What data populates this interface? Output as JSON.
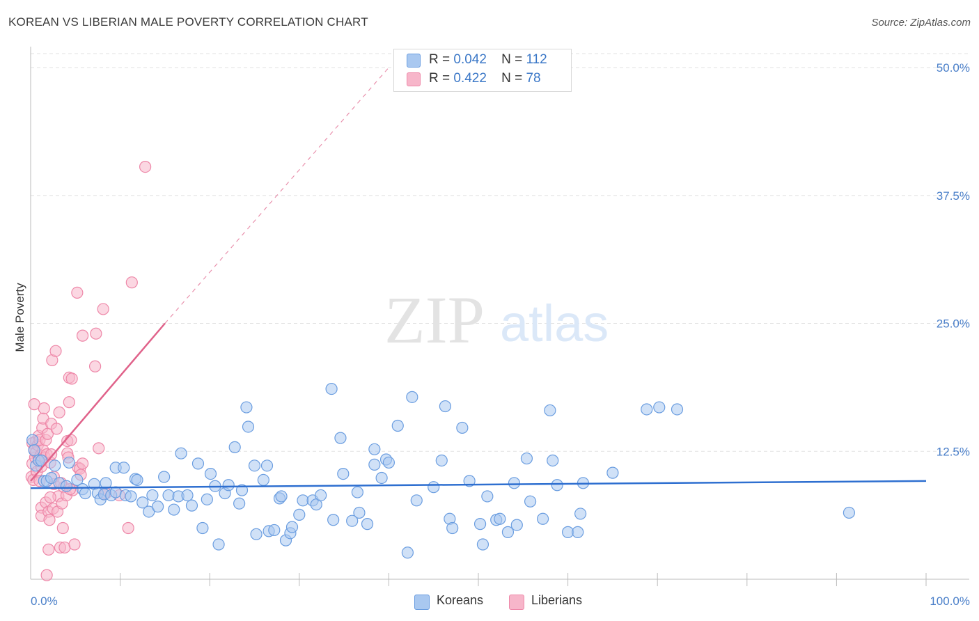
{
  "title": "KOREAN VS LIBERIAN MALE POVERTY CORRELATION CHART",
  "source": "Source: ZipAtlas.com",
  "legend": {
    "rows": [
      {
        "r_label": "R =",
        "r_value": "0.042",
        "n_label": "N =",
        "n_value": "112"
      },
      {
        "r_label": "R =",
        "r_value": "0.422",
        "n_label": "N =",
        "n_value": "78"
      }
    ],
    "series_names": [
      "Koreans",
      "Liberians"
    ]
  },
  "colors": {
    "koreans_fill": "#a9c8f0",
    "koreans_stroke": "#6a9de0",
    "koreans_line": "#2e6fd0",
    "liberians_fill": "#f7b6ca",
    "liberians_stroke": "#ee87a8",
    "liberians_line": "#e0628a",
    "tick_text": "#4a7fc9"
  },
  "watermark": {
    "part1": "ZIP",
    "part2": "atlas"
  },
  "chart_data": {
    "type": "scatter",
    "title": "KOREAN VS LIBERIAN MALE POVERTY CORRELATION CHART",
    "xlabel": "",
    "ylabel": "Male Poverty",
    "xlim": [
      0,
      100
    ],
    "ylim": [
      0,
      50
    ],
    "x_tick_labels": [
      "0.0%",
      "100.0%"
    ],
    "y_ticks": [
      {
        "value": 50,
        "label": "50.0%"
      },
      {
        "value": 37.5,
        "label": "37.5%"
      },
      {
        "value": 25,
        "label": "25.0%"
      },
      {
        "value": 12.5,
        "label": "12.5%"
      }
    ],
    "series": [
      {
        "name": "Koreans",
        "r": 0.042,
        "n": 112,
        "trend": {
          "x0": 0,
          "y0": 8.9,
          "x1": 100,
          "y1": 9.6
        },
        "points": [
          [
            0.2,
            13.6
          ],
          [
            0.4,
            12.6
          ],
          [
            0.6,
            11.1
          ],
          [
            0.9,
            11.6
          ],
          [
            1.2,
            11.6
          ],
          [
            1.5,
            9.6
          ],
          [
            1.8,
            9.6
          ],
          [
            2.3,
            9.9
          ],
          [
            2.7,
            11.1
          ],
          [
            3.2,
            9.4
          ],
          [
            4.0,
            9.1
          ],
          [
            4.3,
            11.4
          ],
          [
            5.2,
            9.7
          ],
          [
            5.8,
            8.8
          ],
          [
            6.1,
            8.4
          ],
          [
            7.1,
            9.3
          ],
          [
            7.5,
            8.4
          ],
          [
            7.8,
            7.8
          ],
          [
            8.2,
            8.3
          ],
          [
            8.4,
            9.4
          ],
          [
            9.0,
            8.2
          ],
          [
            9.5,
            8.5
          ],
          [
            9.5,
            10.9
          ],
          [
            10.4,
            10.9
          ],
          [
            10.6,
            8.2
          ],
          [
            11.2,
            8.1
          ],
          [
            11.7,
            9.8
          ],
          [
            11.9,
            9.7
          ],
          [
            12.5,
            7.5
          ],
          [
            13.2,
            6.6
          ],
          [
            13.6,
            8.2
          ],
          [
            14.2,
            7.1
          ],
          [
            14.9,
            10.0
          ],
          [
            15.4,
            8.2
          ],
          [
            16.0,
            6.8
          ],
          [
            16.5,
            8.1
          ],
          [
            16.8,
            12.3
          ],
          [
            17.5,
            8.2
          ],
          [
            18.0,
            7.2
          ],
          [
            18.7,
            11.3
          ],
          [
            19.2,
            5.0
          ],
          [
            19.7,
            7.8
          ],
          [
            20.1,
            10.3
          ],
          [
            20.6,
            9.1
          ],
          [
            21.0,
            3.4
          ],
          [
            21.7,
            8.4
          ],
          [
            22.1,
            9.2
          ],
          [
            22.8,
            12.9
          ],
          [
            23.3,
            7.4
          ],
          [
            23.6,
            8.7
          ],
          [
            24.1,
            16.8
          ],
          [
            24.3,
            14.9
          ],
          [
            25.0,
            11.1
          ],
          [
            25.2,
            4.4
          ],
          [
            26.0,
            9.7
          ],
          [
            26.4,
            11.1
          ],
          [
            26.6,
            4.7
          ],
          [
            27.2,
            4.8
          ],
          [
            27.8,
            7.9
          ],
          [
            28.0,
            8.1
          ],
          [
            28.5,
            3.8
          ],
          [
            29.0,
            4.5
          ],
          [
            29.2,
            5.1
          ],
          [
            30.0,
            6.3
          ],
          [
            30.4,
            7.7
          ],
          [
            31.5,
            7.7
          ],
          [
            31.9,
            7.3
          ],
          [
            32.4,
            8.2
          ],
          [
            33.6,
            18.6
          ],
          [
            33.8,
            5.8
          ],
          [
            34.6,
            13.8
          ],
          [
            34.9,
            10.3
          ],
          [
            35.9,
            5.7
          ],
          [
            36.5,
            8.5
          ],
          [
            36.7,
            6.5
          ],
          [
            37.6,
            5.4
          ],
          [
            38.4,
            12.7
          ],
          [
            38.4,
            11.2
          ],
          [
            39.2,
            9.9
          ],
          [
            39.7,
            11.7
          ],
          [
            40.0,
            11.4
          ],
          [
            41.0,
            15.0
          ],
          [
            42.1,
            2.6
          ],
          [
            42.6,
            17.8
          ],
          [
            43.1,
            7.7
          ],
          [
            45.0,
            9.0
          ],
          [
            45.9,
            11.6
          ],
          [
            46.3,
            16.9
          ],
          [
            46.8,
            5.9
          ],
          [
            47.1,
            5.0
          ],
          [
            48.2,
            14.8
          ],
          [
            49.0,
            9.6
          ],
          [
            50.2,
            5.4
          ],
          [
            50.5,
            3.4
          ],
          [
            51.0,
            8.1
          ],
          [
            52.0,
            5.8
          ],
          [
            52.4,
            5.9
          ],
          [
            53.3,
            4.6
          ],
          [
            54.0,
            9.4
          ],
          [
            54.3,
            5.3
          ],
          [
            55.4,
            11.8
          ],
          [
            55.8,
            7.6
          ],
          [
            57.2,
            5.9
          ],
          [
            58.0,
            16.5
          ],
          [
            58.3,
            11.6
          ],
          [
            58.8,
            9.2
          ],
          [
            60.0,
            4.6
          ],
          [
            61.1,
            4.6
          ],
          [
            61.4,
            6.4
          ],
          [
            61.7,
            9.4
          ],
          [
            65.0,
            10.4
          ],
          [
            68.8,
            16.6
          ],
          [
            70.2,
            16.8
          ],
          [
            72.2,
            16.6
          ],
          [
            91.4,
            6.5
          ]
        ]
      },
      {
        "name": "Liberians",
        "r": 0.422,
        "n": 78,
        "trend": {
          "x0": 0,
          "y0": 9.6,
          "x1": 15,
          "y1": 25.0
        },
        "trend_extension": {
          "x0": 15,
          "y0": 25.0,
          "x1": 40,
          "y1": 50.0
        },
        "points": [
          [
            0.1,
            10.0
          ],
          [
            0.2,
            11.3
          ],
          [
            0.2,
            13.3
          ],
          [
            0.3,
            9.7
          ],
          [
            0.4,
            12.7
          ],
          [
            0.4,
            17.1
          ],
          [
            0.5,
            11.9
          ],
          [
            0.6,
            13.5
          ],
          [
            0.6,
            12.4
          ],
          [
            0.7,
            10.5
          ],
          [
            0.8,
            13.1
          ],
          [
            0.9,
            11.8
          ],
          [
            0.9,
            14.0
          ],
          [
            1.0,
            13.6
          ],
          [
            1.1,
            12.1
          ],
          [
            1.2,
            11.0
          ],
          [
            1.2,
            7.0
          ],
          [
            1.2,
            6.2
          ],
          [
            1.3,
            14.8
          ],
          [
            1.4,
            15.7
          ],
          [
            1.4,
            12.6
          ],
          [
            1.5,
            16.7
          ],
          [
            1.6,
            11.9
          ],
          [
            1.7,
            7.5
          ],
          [
            1.7,
            13.6
          ],
          [
            1.8,
            12.2
          ],
          [
            1.8,
            0.4
          ],
          [
            1.9,
            14.2
          ],
          [
            2.0,
            6.6
          ],
          [
            2.0,
            2.9
          ],
          [
            2.1,
            5.8
          ],
          [
            2.2,
            11.4
          ],
          [
            2.3,
            12.2
          ],
          [
            2.3,
            15.2
          ],
          [
            2.4,
            21.4
          ],
          [
            2.5,
            6.9
          ],
          [
            2.6,
            9.3
          ],
          [
            2.6,
            10.0
          ],
          [
            2.8,
            22.3
          ],
          [
            2.9,
            14.7
          ],
          [
            3.0,
            6.6
          ],
          [
            3.1,
            8.1
          ],
          [
            3.2,
            16.3
          ],
          [
            3.3,
            3.1
          ],
          [
            3.5,
            7.4
          ],
          [
            3.6,
            5.0
          ],
          [
            3.7,
            9.0
          ],
          [
            3.8,
            3.1
          ],
          [
            4.0,
            8.2
          ],
          [
            4.1,
            12.3
          ],
          [
            4.1,
            13.5
          ],
          [
            4.2,
            11.9
          ],
          [
            4.3,
            17.3
          ],
          [
            4.3,
            19.7
          ],
          [
            4.5,
            13.6
          ],
          [
            4.6,
            19.6
          ],
          [
            4.7,
            8.7
          ],
          [
            4.9,
            3.4
          ],
          [
            5.2,
            28.0
          ],
          [
            5.3,
            10.9
          ],
          [
            5.5,
            10.8
          ],
          [
            5.6,
            10.2
          ],
          [
            5.8,
            23.8
          ],
          [
            5.8,
            11.3
          ],
          [
            7.2,
            20.8
          ],
          [
            7.3,
            24.0
          ],
          [
            7.6,
            12.8
          ],
          [
            8.1,
            26.4
          ],
          [
            8.2,
            8.3
          ],
          [
            8.4,
            8.4
          ],
          [
            9.9,
            8.2
          ],
          [
            10.9,
            5.0
          ],
          [
            11.3,
            29.0
          ],
          [
            12.8,
            40.3
          ],
          [
            1.0,
            9.6
          ],
          [
            2.2,
            8.0
          ],
          [
            3.4,
            9.4
          ],
          [
            4.4,
            8.8
          ]
        ]
      }
    ]
  }
}
